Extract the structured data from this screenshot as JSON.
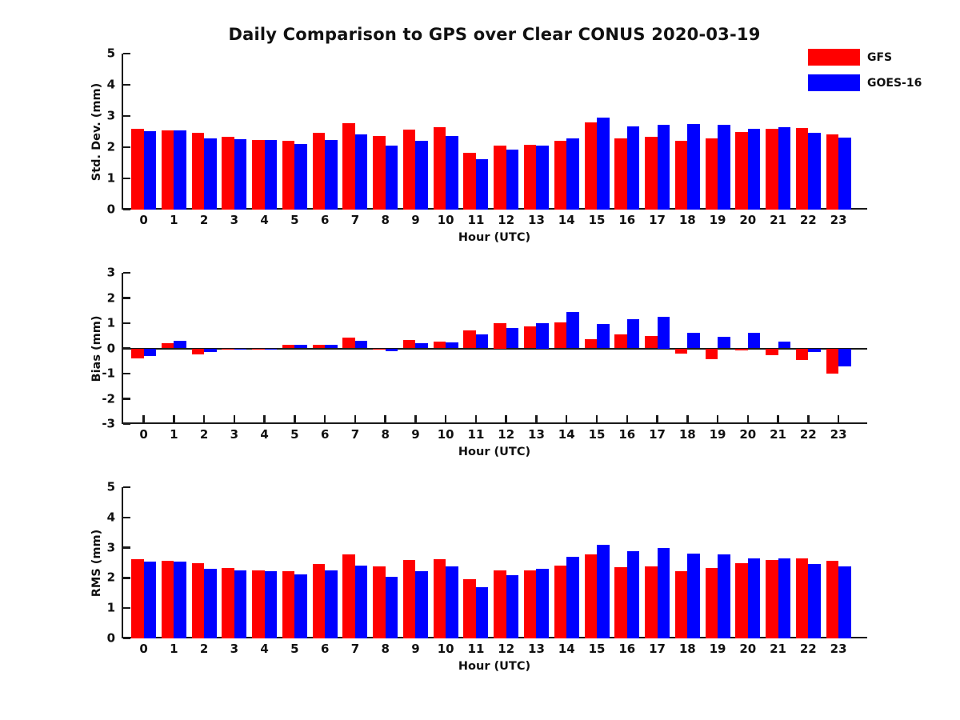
{
  "title": "Daily Comparison to GPS over Clear CONUS 2020-03-19",
  "colors": {
    "gfs_red": "#ff0000",
    "goes_blue": "#0000ff",
    "axis": "#1a1a1a"
  },
  "legend": [
    {
      "label": "GFS",
      "color": "#ff0000"
    },
    {
      "label": "GOES-16",
      "color": "#0000ff"
    }
  ],
  "chart_data": [
    {
      "type": "bar",
      "title": "Daily Comparison to GPS over Clear CONUS 2020-03-19",
      "xlabel": "Hour (UTC)",
      "ylabel": "Std. Dev. (mm)",
      "ylim": [
        0,
        5
      ],
      "yticks": [
        0,
        1,
        2,
        3,
        4,
        5
      ],
      "grid": false,
      "legend_position": "outside upper right",
      "categories": [
        "0",
        "1",
        "2",
        "3",
        "4",
        "5",
        "6",
        "7",
        "8",
        "9",
        "10",
        "11",
        "12",
        "13",
        "14",
        "15",
        "16",
        "17",
        "18",
        "19",
        "20",
        "21",
        "22",
        "23"
      ],
      "series": [
        {
          "name": "GFS",
          "color": "#ff0000",
          "values": [
            2.6,
            2.55,
            2.46,
            2.34,
            2.24,
            2.21,
            2.46,
            2.78,
            2.36,
            2.57,
            2.64,
            1.82,
            2.05,
            2.07,
            2.21,
            2.79,
            2.27,
            2.33,
            2.21,
            2.28,
            2.48,
            2.59,
            2.62,
            2.4
          ]
        },
        {
          "name": "GOES-16",
          "color": "#0000ff",
          "values": [
            2.52,
            2.53,
            2.29,
            2.25,
            2.22,
            2.1,
            2.24,
            2.4,
            2.04,
            2.21,
            2.36,
            1.62,
            1.92,
            2.05,
            2.28,
            2.95,
            2.67,
            2.72,
            2.75,
            2.72,
            2.59,
            2.65,
            2.47,
            2.3
          ]
        }
      ]
    },
    {
      "type": "bar",
      "title": "",
      "xlabel": "Hour (UTC)",
      "ylabel": "Bias (mm)",
      "ylim": [
        -3,
        3
      ],
      "yticks": [
        -3,
        -2,
        -1,
        0,
        1,
        2,
        3
      ],
      "grid": false,
      "categories": [
        "0",
        "1",
        "2",
        "3",
        "4",
        "5",
        "6",
        "7",
        "8",
        "9",
        "10",
        "11",
        "12",
        "13",
        "14",
        "15",
        "16",
        "17",
        "18",
        "19",
        "20",
        "21",
        "22",
        "23"
      ],
      "series": [
        {
          "name": "GFS",
          "color": "#ff0000",
          "values": [
            -0.4,
            0.22,
            -0.25,
            -0.06,
            -0.04,
            0.13,
            0.13,
            0.44,
            -0.02,
            0.32,
            0.28,
            0.73,
            1.0,
            0.86,
            1.02,
            0.38,
            0.56,
            0.49,
            -0.22,
            -0.44,
            -0.08,
            -0.28,
            -0.45,
            -1.0
          ]
        },
        {
          "name": "GOES-16",
          "color": "#0000ff",
          "values": [
            -0.3,
            0.29,
            -0.15,
            -0.02,
            -0.01,
            0.13,
            0.13,
            0.29,
            -0.11,
            0.22,
            0.23,
            0.54,
            0.82,
            1.0,
            1.46,
            0.97,
            1.17,
            1.25,
            0.61,
            0.47,
            0.63,
            0.27,
            -0.15,
            -0.72
          ]
        }
      ]
    },
    {
      "type": "bar",
      "title": "",
      "xlabel": "Hour (UTC)",
      "ylabel": "RMS (mm)",
      "ylim": [
        0,
        5
      ],
      "yticks": [
        0,
        1,
        2,
        3,
        4,
        5
      ],
      "grid": false,
      "categories": [
        "0",
        "1",
        "2",
        "3",
        "4",
        "5",
        "6",
        "7",
        "8",
        "9",
        "10",
        "11",
        "12",
        "13",
        "14",
        "15",
        "16",
        "17",
        "18",
        "19",
        "20",
        "21",
        "22",
        "23"
      ],
      "series": [
        {
          "name": "GFS",
          "color": "#ff0000",
          "values": [
            2.63,
            2.57,
            2.48,
            2.34,
            2.25,
            2.23,
            2.46,
            2.78,
            2.37,
            2.6,
            2.63,
            1.95,
            2.26,
            2.24,
            2.41,
            2.79,
            2.35,
            2.39,
            2.22,
            2.33,
            2.48,
            2.59,
            2.65,
            2.57
          ]
        },
        {
          "name": "GOES-16",
          "color": "#0000ff",
          "values": [
            2.55,
            2.53,
            2.29,
            2.25,
            2.23,
            2.11,
            2.25,
            2.4,
            2.04,
            2.23,
            2.38,
            1.7,
            2.08,
            2.29,
            2.71,
            3.09,
            2.89,
            2.99,
            2.81,
            2.77,
            2.64,
            2.64,
            2.47,
            2.38
          ]
        }
      ]
    }
  ]
}
